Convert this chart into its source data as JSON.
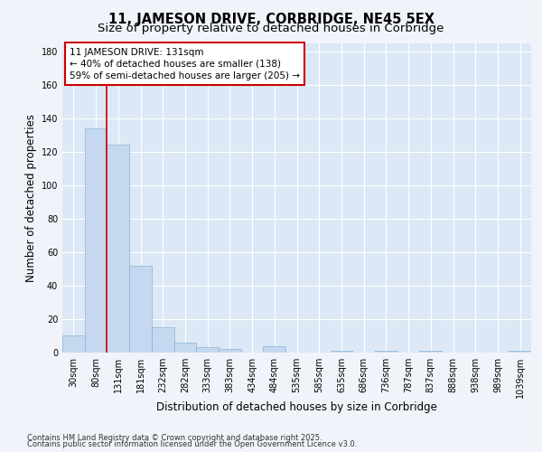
{
  "title1": "11, JAMESON DRIVE, CORBRIDGE, NE45 5EX",
  "title2": "Size of property relative to detached houses in Corbridge",
  "xlabel": "Distribution of detached houses by size in Corbridge",
  "ylabel": "Number of detached properties",
  "categories": [
    "30sqm",
    "80sqm",
    "131sqm",
    "181sqm",
    "232sqm",
    "282sqm",
    "333sqm",
    "383sqm",
    "434sqm",
    "484sqm",
    "535sqm",
    "585sqm",
    "635sqm",
    "686sqm",
    "736sqm",
    "787sqm",
    "837sqm",
    "888sqm",
    "938sqm",
    "989sqm",
    "1039sqm"
  ],
  "values": [
    10,
    134,
    124,
    52,
    15,
    6,
    3,
    2,
    0,
    4,
    0,
    0,
    1,
    0,
    1,
    0,
    1,
    0,
    0,
    0,
    1
  ],
  "bar_color": "#c5d8f0",
  "bar_edge_color": "#8ab4d8",
  "vline_index": 2,
  "vline_color": "#cc0000",
  "annotation_line1": "11 JAMESON DRIVE: 131sqm",
  "annotation_line2": "← 40% of detached houses are smaller (138)",
  "annotation_line3": "59% of semi-detached houses are larger (205) →",
  "annotation_box_color": "#cc0000",
  "ylim": [
    0,
    185
  ],
  "yticks": [
    0,
    20,
    40,
    60,
    80,
    100,
    120,
    140,
    160,
    180
  ],
  "background_color": "#dce8f5",
  "grid_color": "#ffffff",
  "fig_background": "#f0f4fa",
  "footer1": "Contains HM Land Registry data © Crown copyright and database right 2025.",
  "footer2": "Contains public sector information licensed under the Open Government Licence v3.0.",
  "title_fontsize": 10.5,
  "subtitle_fontsize": 9.5,
  "axis_label_fontsize": 8.5,
  "tick_fontsize": 7,
  "annotation_fontsize": 7.5,
  "footer_fontsize": 6
}
